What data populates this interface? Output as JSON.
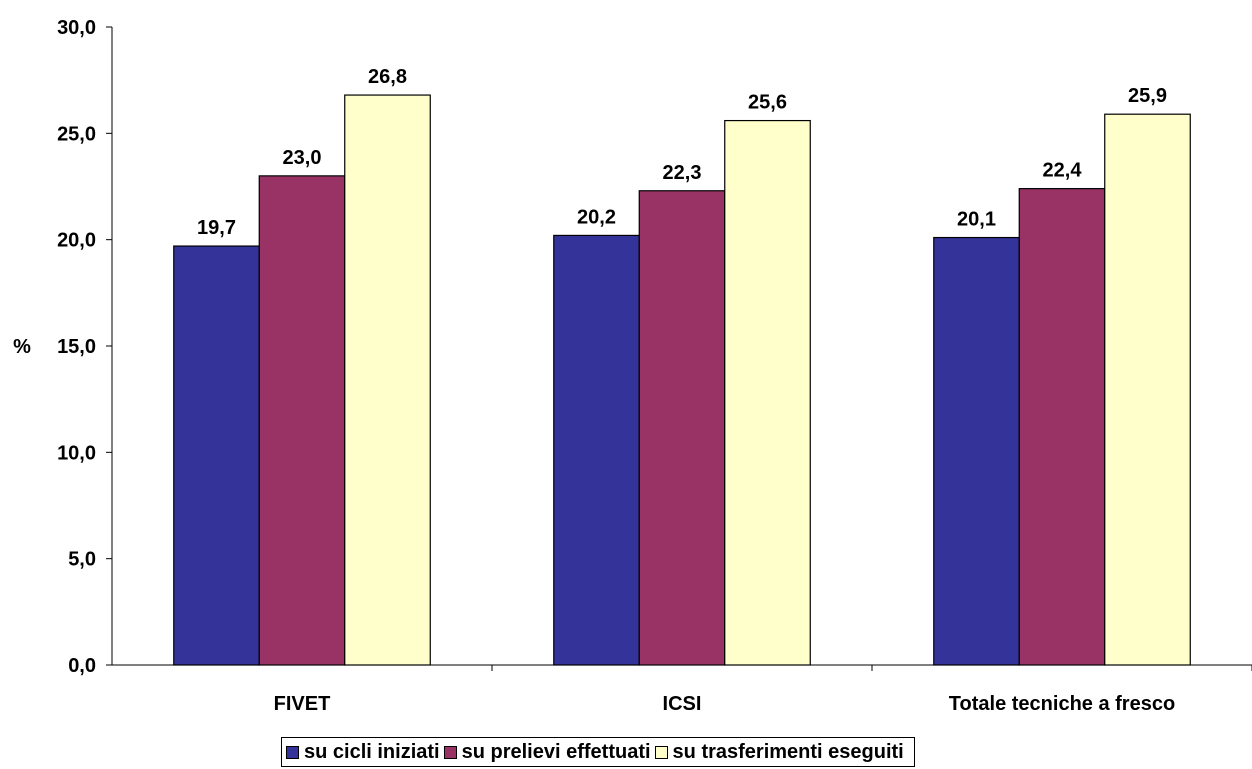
{
  "chart_data": {
    "type": "bar",
    "categories": [
      "FIVET",
      "ICSI",
      "Totale tecniche a fresco"
    ],
    "series": [
      {
        "name": "su cicli iniziati",
        "values": [
          19.7,
          20.2,
          20.1
        ],
        "labels": [
          "19,7",
          "20,2",
          "20,1"
        ],
        "color": "#333399"
      },
      {
        "name": "su prelievi effettuati",
        "values": [
          23.0,
          22.3,
          22.4
        ],
        "labels": [
          "23,0",
          "22,3",
          "22,4"
        ],
        "color": "#993366"
      },
      {
        "name": "su trasferimenti eseguiti",
        "values": [
          26.8,
          25.6,
          25.9
        ],
        "labels": [
          "26,8",
          "25,6",
          "25,9"
        ],
        "color": "#FFFFCC"
      }
    ],
    "ylabel": "%",
    "ylim": [
      0,
      30
    ],
    "yticks": [
      "0,0",
      "5,0",
      "10,0",
      "15,0",
      "20,0",
      "25,0",
      "30,0"
    ],
    "ytick_values": [
      0,
      5,
      10,
      15,
      20,
      25,
      30
    ],
    "grid": false,
    "legend_position": "bottom"
  }
}
